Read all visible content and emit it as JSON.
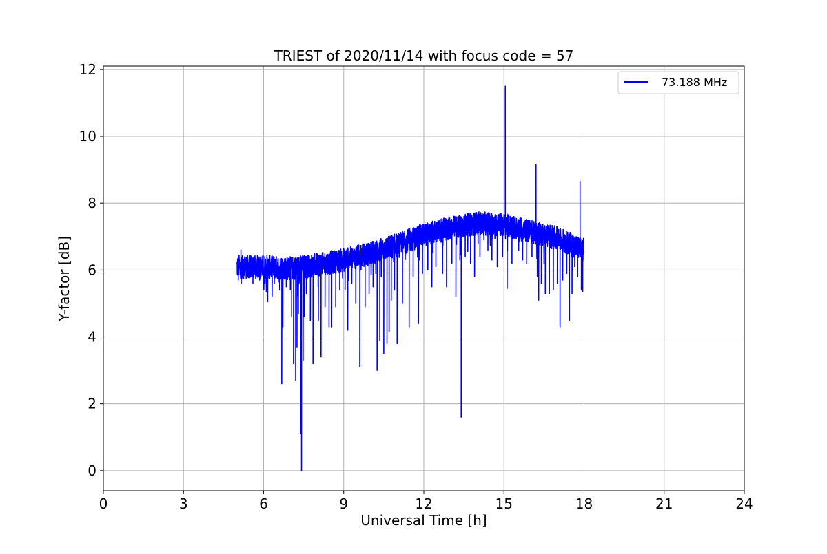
{
  "chart_data": {
    "type": "line",
    "title": "TRIEST of 2020/11/14 with focus code = 57",
    "xlabel": "Universal Time [h]",
    "ylabel": "Y-factor [dB]",
    "xlim": [
      0,
      24
    ],
    "ylim": [
      -0.6,
      12.1
    ],
    "xticks": [
      "0",
      "3",
      "6",
      "9",
      "12",
      "15",
      "18",
      "21",
      "24"
    ],
    "yticks": [
      "0",
      "2",
      "4",
      "6",
      "8",
      "10",
      "12"
    ],
    "grid": true,
    "legend_position": "top-right",
    "series": [
      {
        "name": "73.188 MHz",
        "color": "#0000ff",
        "x_range": [
          5.0,
          18.0
        ],
        "baseline": [
          [
            5.0,
            6.1
          ],
          [
            6.0,
            6.1
          ],
          [
            7.0,
            6.05
          ],
          [
            8.0,
            6.15
          ],
          [
            9.0,
            6.3
          ],
          [
            10.0,
            6.5
          ],
          [
            11.0,
            6.75
          ],
          [
            12.0,
            7.05
          ],
          [
            13.0,
            7.25
          ],
          [
            14.0,
            7.4
          ],
          [
            15.0,
            7.35
          ],
          [
            16.0,
            7.15
          ],
          [
            17.0,
            6.95
          ],
          [
            18.0,
            6.6
          ]
        ],
        "noise_band_db": 0.35,
        "dips": [
          [
            5.05,
            5.7
          ],
          [
            5.15,
            5.9
          ],
          [
            5.4,
            5.8
          ],
          [
            5.6,
            5.6
          ],
          [
            5.85,
            5.7
          ],
          [
            6.05,
            5.6
          ],
          [
            6.15,
            5.05
          ],
          [
            6.4,
            5.6
          ],
          [
            6.6,
            5.4
          ],
          [
            6.68,
            2.6
          ],
          [
            6.72,
            4.3
          ],
          [
            6.85,
            5.5
          ],
          [
            7.0,
            5.4
          ],
          [
            7.05,
            4.6
          ],
          [
            7.12,
            3.2
          ],
          [
            7.2,
            2.7
          ],
          [
            7.25,
            3.7
          ],
          [
            7.3,
            4.7
          ],
          [
            7.38,
            1.1
          ],
          [
            7.42,
            0.0
          ],
          [
            7.48,
            3.3
          ],
          [
            7.52,
            4.6
          ],
          [
            7.6,
            5.3
          ],
          [
            7.75,
            4.5
          ],
          [
            7.85,
            3.2
          ],
          [
            8.05,
            4.5
          ],
          [
            8.15,
            3.4
          ],
          [
            8.3,
            4.9
          ],
          [
            8.45,
            4.3
          ],
          [
            8.55,
            4.3
          ],
          [
            8.7,
            4.9
          ],
          [
            8.85,
            5.4
          ],
          [
            9.05,
            5.4
          ],
          [
            9.15,
            4.2
          ],
          [
            9.3,
            5.6
          ],
          [
            9.45,
            5.0
          ],
          [
            9.6,
            3.1
          ],
          [
            9.8,
            4.9
          ],
          [
            9.95,
            5.3
          ],
          [
            10.1,
            5.5
          ],
          [
            10.25,
            3.0
          ],
          [
            10.35,
            3.9
          ],
          [
            10.5,
            3.5
          ],
          [
            10.62,
            3.8
          ],
          [
            10.7,
            4.15
          ],
          [
            10.78,
            5.1
          ],
          [
            10.9,
            5.4
          ],
          [
            11.0,
            3.8
          ],
          [
            11.2,
            5.0
          ],
          [
            11.45,
            4.3
          ],
          [
            11.6,
            5.8
          ],
          [
            11.8,
            4.4
          ],
          [
            11.95,
            5.9
          ],
          [
            12.15,
            6.0
          ],
          [
            12.3,
            5.5
          ],
          [
            12.45,
            6.1
          ],
          [
            12.7,
            5.9
          ],
          [
            12.85,
            5.5
          ],
          [
            13.05,
            6.2
          ],
          [
            13.2,
            5.2
          ],
          [
            13.35,
            6.3
          ],
          [
            13.4,
            1.6
          ],
          [
            13.55,
            6.4
          ],
          [
            13.75,
            6.2
          ],
          [
            13.9,
            5.8
          ],
          [
            14.1,
            6.4
          ],
          [
            14.25,
            6.9
          ],
          [
            14.4,
            6.6
          ],
          [
            14.55,
            6.3
          ],
          [
            14.75,
            6.1
          ],
          [
            14.95,
            6.4
          ],
          [
            15.12,
            5.45
          ],
          [
            15.3,
            6.2
          ],
          [
            15.55,
            6.6
          ],
          [
            15.7,
            6.3
          ],
          [
            15.85,
            6.2
          ],
          [
            16.05,
            6.4
          ],
          [
            16.25,
            5.8
          ],
          [
            16.3,
            5.1
          ],
          [
            16.4,
            5.6
          ],
          [
            16.55,
            5.3
          ],
          [
            16.7,
            5.3
          ],
          [
            16.85,
            5.4
          ],
          [
            17.0,
            5.6
          ],
          [
            17.1,
            4.3
          ],
          [
            17.2,
            5.7
          ],
          [
            17.35,
            5.9
          ],
          [
            17.45,
            4.5
          ],
          [
            17.55,
            5.3
          ],
          [
            17.65,
            6.1
          ],
          [
            17.75,
            5.8
          ],
          [
            17.9,
            5.4
          ],
          [
            17.95,
            5.35
          ]
        ],
        "spikes": [
          [
            5.15,
            6.6
          ],
          [
            6.3,
            6.4
          ],
          [
            7.9,
            6.5
          ],
          [
            9.5,
            6.7
          ],
          [
            10.7,
            6.9
          ],
          [
            11.8,
            7.3
          ],
          [
            12.9,
            7.5
          ],
          [
            13.5,
            7.6
          ],
          [
            15.05,
            11.5
          ],
          [
            15.55,
            7.4
          ],
          [
            16.2,
            9.15
          ],
          [
            17.0,
            7.3
          ],
          [
            17.85,
            8.65
          ]
        ]
      }
    ]
  }
}
